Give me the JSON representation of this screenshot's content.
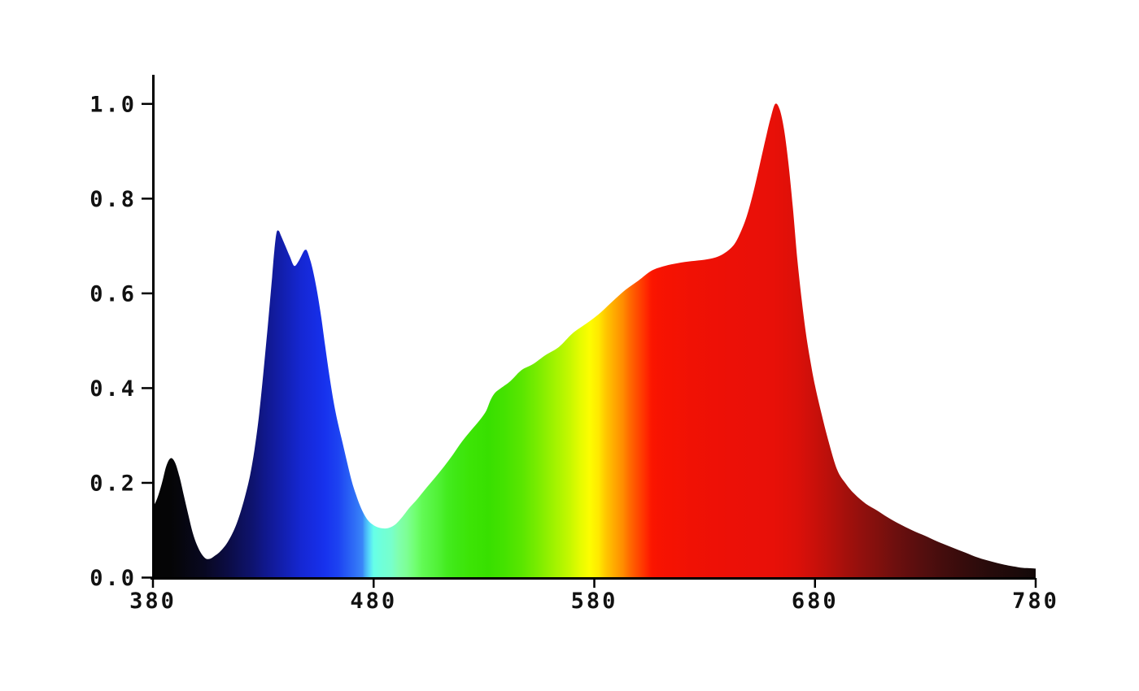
{
  "page": {
    "background": "#ffffff",
    "description": "Spectral power distribution area chart, relative intensity vs wavelength (nm), area filled with spectral colors"
  },
  "chart_data": {
    "type": "area",
    "title": "",
    "xlabel": "",
    "ylabel": "",
    "grid": false,
    "legend": false,
    "axis_color": "#000000",
    "label_color": "#111111",
    "x_axis": {
      "min": 380,
      "max": 780,
      "ticks": [
        380,
        480,
        580,
        680,
        780
      ],
      "tick_labels": [
        "380",
        "480",
        "580",
        "680",
        "780"
      ]
    },
    "y_axis": {
      "min": 0.0,
      "max": 1.0,
      "ticks": [
        0.0,
        0.2,
        0.4,
        0.6,
        0.8,
        1.0
      ],
      "tick_labels": [
        "0.0",
        "0.2",
        "0.4",
        "0.6",
        "0.8",
        "1.0"
      ]
    },
    "points": [
      [
        380,
        0.148
      ],
      [
        382,
        0.168
      ],
      [
        384,
        0.198
      ],
      [
        386,
        0.235
      ],
      [
        388,
        0.252
      ],
      [
        390,
        0.243
      ],
      [
        392,
        0.213
      ],
      [
        394,
        0.173
      ],
      [
        396,
        0.133
      ],
      [
        398,
        0.095
      ],
      [
        400,
        0.068
      ],
      [
        402,
        0.05
      ],
      [
        404,
        0.04
      ],
      [
        406,
        0.04
      ],
      [
        408,
        0.046
      ],
      [
        410,
        0.053
      ],
      [
        412,
        0.063
      ],
      [
        414,
        0.076
      ],
      [
        416,
        0.093
      ],
      [
        418,
        0.115
      ],
      [
        420,
        0.143
      ],
      [
        422,
        0.176
      ],
      [
        424,
        0.216
      ],
      [
        426,
        0.27
      ],
      [
        428,
        0.34
      ],
      [
        430,
        0.43
      ],
      [
        432,
        0.53
      ],
      [
        434,
        0.635
      ],
      [
        435,
        0.69
      ],
      [
        436,
        0.728
      ],
      [
        437,
        0.732
      ],
      [
        438,
        0.722
      ],
      [
        440,
        0.7
      ],
      [
        442,
        0.678
      ],
      [
        444,
        0.658
      ],
      [
        446,
        0.668
      ],
      [
        448,
        0.686
      ],
      [
        449,
        0.692
      ],
      [
        450,
        0.688
      ],
      [
        452,
        0.658
      ],
      [
        454,
        0.614
      ],
      [
        456,
        0.558
      ],
      [
        458,
        0.49
      ],
      [
        460,
        0.425
      ],
      [
        462,
        0.368
      ],
      [
        464,
        0.322
      ],
      [
        466,
        0.283
      ],
      [
        468,
        0.243
      ],
      [
        470,
        0.205
      ],
      [
        472,
        0.175
      ],
      [
        474,
        0.15
      ],
      [
        476,
        0.131
      ],
      [
        478,
        0.118
      ],
      [
        481,
        0.108
      ],
      [
        484,
        0.104
      ],
      [
        487,
        0.105
      ],
      [
        490,
        0.113
      ],
      [
        493,
        0.128
      ],
      [
        496,
        0.146
      ],
      [
        500,
        0.167
      ],
      [
        504,
        0.19
      ],
      [
        508,
        0.212
      ],
      [
        512,
        0.235
      ],
      [
        516,
        0.26
      ],
      [
        520,
        0.287
      ],
      [
        524,
        0.31
      ],
      [
        528,
        0.332
      ],
      [
        531,
        0.352
      ],
      [
        533,
        0.375
      ],
      [
        535,
        0.39
      ],
      [
        538,
        0.401
      ],
      [
        542,
        0.415
      ],
      [
        547,
        0.438
      ],
      [
        552,
        0.45
      ],
      [
        558,
        0.47
      ],
      [
        564,
        0.487
      ],
      [
        570,
        0.515
      ],
      [
        576,
        0.535
      ],
      [
        582,
        0.556
      ],
      [
        588,
        0.582
      ],
      [
        594,
        0.607
      ],
      [
        600,
        0.627
      ],
      [
        606,
        0.648
      ],
      [
        612,
        0.658
      ],
      [
        618,
        0.664
      ],
      [
        624,
        0.668
      ],
      [
        630,
        0.671
      ],
      [
        635,
        0.676
      ],
      [
        639,
        0.685
      ],
      [
        643,
        0.701
      ],
      [
        646,
        0.726
      ],
      [
        649,
        0.762
      ],
      [
        652,
        0.812
      ],
      [
        655,
        0.872
      ],
      [
        658,
        0.934
      ],
      [
        660,
        0.972
      ],
      [
        662,
        1.0
      ],
      [
        664,
        0.988
      ],
      [
        666,
        0.945
      ],
      [
        668,
        0.873
      ],
      [
        670,
        0.78
      ],
      [
        672,
        0.672
      ],
      [
        674,
        0.585
      ],
      [
        676,
        0.512
      ],
      [
        678,
        0.455
      ],
      [
        680,
        0.405
      ],
      [
        683,
        0.345
      ],
      [
        686,
        0.29
      ],
      [
        690,
        0.228
      ],
      [
        694,
        0.198
      ],
      [
        698,
        0.176
      ],
      [
        703,
        0.156
      ],
      [
        708,
        0.142
      ],
      [
        713,
        0.127
      ],
      [
        718,
        0.114
      ],
      [
        724,
        0.1
      ],
      [
        730,
        0.088
      ],
      [
        736,
        0.075
      ],
      [
        742,
        0.064
      ],
      [
        748,
        0.053
      ],
      [
        754,
        0.042
      ],
      [
        760,
        0.034
      ],
      [
        766,
        0.027
      ],
      [
        772,
        0.022
      ],
      [
        776,
        0.02
      ],
      [
        780,
        0.019
      ]
    ],
    "color_stops": [
      [
        380,
        "#050505"
      ],
      [
        388,
        "#050506"
      ],
      [
        392,
        "#06060c"
      ],
      [
        397,
        "#070716"
      ],
      [
        403,
        "#080820"
      ],
      [
        408,
        "#0a0a30"
      ],
      [
        414,
        "#0b0c44"
      ],
      [
        419,
        "#0d1058"
      ],
      [
        425,
        "#0e136e"
      ],
      [
        430,
        "#101788"
      ],
      [
        436,
        "#121ca2"
      ],
      [
        442,
        "#1322bc"
      ],
      [
        447,
        "#1527d2"
      ],
      [
        453,
        "#162ce2"
      ],
      [
        458,
        "#1732ee"
      ],
      [
        464,
        "#1d43f2"
      ],
      [
        467,
        "#2455f4"
      ],
      [
        471,
        "#2e6cf6"
      ],
      [
        475,
        "#3a86f8"
      ],
      [
        476,
        "#44aaf8"
      ],
      [
        478,
        "#55d8fa"
      ],
      [
        480,
        "#66ffe8"
      ],
      [
        484,
        "#70ffd8"
      ],
      [
        488,
        "#77ffcc"
      ],
      [
        491,
        "#80ffb0"
      ],
      [
        495,
        "#7dff95"
      ],
      [
        499,
        "#70ff70"
      ],
      [
        502,
        "#62fa55"
      ],
      [
        506,
        "#58f544"
      ],
      [
        510,
        "#4ef032"
      ],
      [
        513,
        "#44ec20"
      ],
      [
        517,
        "#3fe815"
      ],
      [
        524,
        "#3ce405"
      ],
      [
        532,
        "#38e000"
      ],
      [
        539,
        "#44e200"
      ],
      [
        547,
        "#59e600"
      ],
      [
        554,
        "#78ec00"
      ],
      [
        561,
        "#9cf200"
      ],
      [
        569,
        "#c6f800"
      ],
      [
        574,
        "#e8fc00"
      ],
      [
        578,
        "#fdfd00"
      ],
      [
        582,
        "#ffe800"
      ],
      [
        585,
        "#ffc900"
      ],
      [
        589,
        "#ffaa00"
      ],
      [
        593,
        "#ff8c00"
      ],
      [
        596,
        "#ff6a00"
      ],
      [
        600,
        "#ff4800"
      ],
      [
        604,
        "#ff2600"
      ],
      [
        606,
        "#fb1600"
      ],
      [
        609,
        "#f81301"
      ],
      [
        624,
        "#f01104"
      ],
      [
        642,
        "#ec1007"
      ],
      [
        661,
        "#e81008"
      ],
      [
        672,
        "#dc1009"
      ],
      [
        679,
        "#cc100a"
      ],
      [
        687,
        "#b8100b"
      ],
      [
        694,
        "#a4100c"
      ],
      [
        701,
        "#92100d"
      ],
      [
        709,
        "#80100d"
      ],
      [
        716,
        "#6e0f0e"
      ],
      [
        727,
        "#580e0e"
      ],
      [
        738,
        "#440d0d"
      ],
      [
        749,
        "#340c0c"
      ],
      [
        760,
        "#260b0b"
      ],
      [
        772,
        "#1b0a0a"
      ],
      [
        780,
        "#120909"
      ]
    ]
  }
}
